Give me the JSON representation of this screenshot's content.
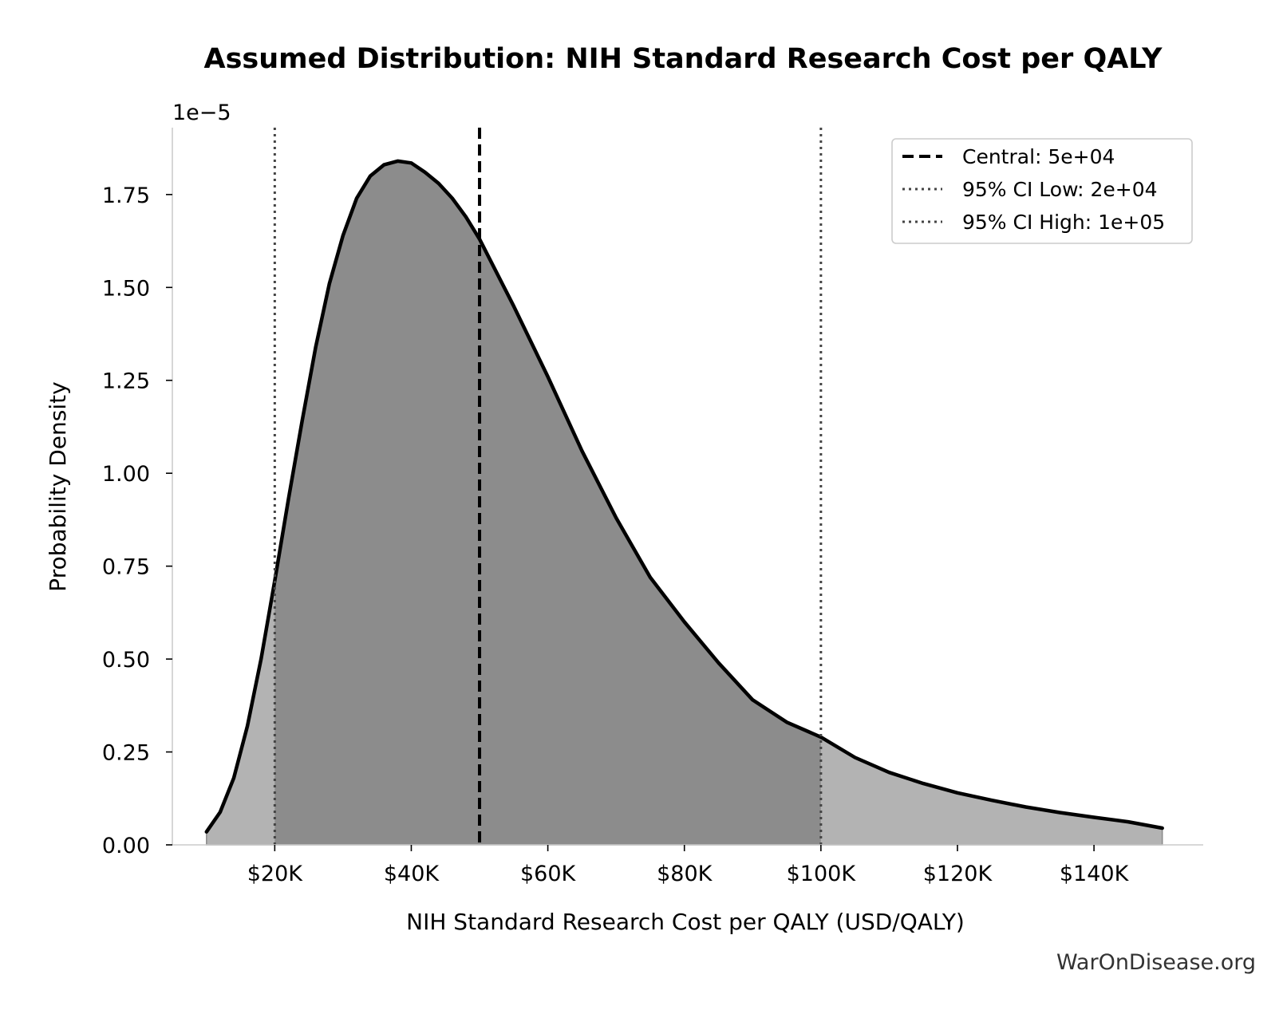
{
  "chart_data": {
    "type": "area",
    "title": "Assumed Distribution: NIH Standard Research Cost per QALY",
    "xlabel": "NIH Standard Research Cost per QALY (USD/QALY)",
    "ylabel": "Probability Density",
    "y_scale_note": "1e−5",
    "y_multiplier": 1e-05,
    "xlim": [
      5000,
      156000
    ],
    "ylim": [
      0,
      1.93
    ],
    "xticks": [
      {
        "value": 20000,
        "label": "$20K"
      },
      {
        "value": 40000,
        "label": "$40K"
      },
      {
        "value": 60000,
        "label": "$60K"
      },
      {
        "value": 80000,
        "label": "$80K"
      },
      {
        "value": 100000,
        "label": "$100K"
      },
      {
        "value": 120000,
        "label": "$120K"
      },
      {
        "value": 140000,
        "label": "$140K"
      }
    ],
    "yticks": [
      {
        "value": 0.0,
        "label": "0.00"
      },
      {
        "value": 0.25,
        "label": "0.25"
      },
      {
        "value": 0.5,
        "label": "0.50"
      },
      {
        "value": 0.75,
        "label": "0.75"
      },
      {
        "value": 1.0,
        "label": "1.00"
      },
      {
        "value": 1.25,
        "label": "1.25"
      },
      {
        "value": 1.5,
        "label": "1.50"
      },
      {
        "value": 1.75,
        "label": "1.75"
      }
    ],
    "curve": {
      "x": [
        10000,
        12000,
        14000,
        16000,
        18000,
        20000,
        22000,
        24000,
        26000,
        28000,
        30000,
        32000,
        34000,
        36000,
        38000,
        40000,
        42000,
        44000,
        46000,
        48000,
        50000,
        55000,
        60000,
        65000,
        70000,
        75000,
        80000,
        85000,
        90000,
        95000,
        100000,
        105000,
        110000,
        115000,
        120000,
        125000,
        130000,
        135000,
        140000,
        145000,
        150000
      ],
      "y": [
        0.035,
        0.088,
        0.18,
        0.32,
        0.5,
        0.71,
        0.93,
        1.14,
        1.34,
        1.51,
        1.64,
        1.74,
        1.8,
        1.83,
        1.84,
        1.835,
        1.81,
        1.78,
        1.74,
        1.69,
        1.63,
        1.45,
        1.26,
        1.06,
        0.88,
        0.72,
        0.6,
        0.49,
        0.39,
        0.33,
        0.29,
        0.235,
        0.195,
        0.165,
        0.14,
        0.12,
        0.102,
        0.087,
        0.074,
        0.062,
        0.045
      ]
    },
    "shaded_interval": [
      20000,
      100000
    ],
    "vlines": [
      {
        "name": "Central: 5e+04",
        "x": 50000,
        "style": "dashed",
        "color": "#000000"
      },
      {
        "name": "95% CI Low: 2e+04",
        "x": 20000,
        "style": "dotted",
        "color": "#444444"
      },
      {
        "name": "95% CI High: 1e+05",
        "x": 100000,
        "style": "dotted",
        "color": "#444444"
      }
    ],
    "legend_position": "top-right",
    "grid": false,
    "colors": {
      "curve": "#000000",
      "fill_ci": "#8c8c8c",
      "fill_tail": "#b3b3b3",
      "axis": "#cccccc"
    }
  },
  "watermark": "WarOnDisease.org"
}
